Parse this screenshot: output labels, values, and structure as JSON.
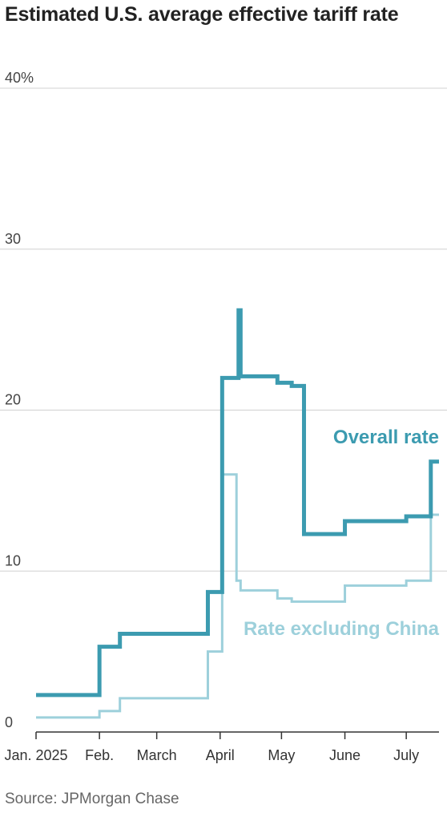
{
  "chart_data": {
    "type": "line",
    "title": "Estimated U.S. average effective tariff rate",
    "source": "Source: JPMorgan Chase",
    "xlim": [
      "2025-01-01",
      "2025-07-17"
    ],
    "ylim": [
      0,
      40
    ],
    "y_ticks": [
      0,
      10,
      20,
      30,
      40
    ],
    "y_tick_labels": [
      "0",
      "10",
      "20",
      "30",
      "40%"
    ],
    "x_ticks": [
      "2025-01-01",
      "2025-02-01",
      "2025-03-01",
      "2025-04-01",
      "2025-05-01",
      "2025-06-01",
      "2025-07-01"
    ],
    "x_tick_labels": [
      "Jan. 2025",
      "Feb.",
      "March",
      "April",
      "May",
      "June",
      "July"
    ],
    "grid": true,
    "line_style": "step",
    "series": [
      {
        "name": "Overall rate",
        "color": "#3c9bb0",
        "points": [
          [
            "2025-01-01",
            2.3
          ],
          [
            "2025-02-01",
            5.3
          ],
          [
            "2025-02-11",
            6.1
          ],
          [
            "2025-03-26",
            8.7
          ],
          [
            "2025-04-02",
            22.0
          ],
          [
            "2025-04-10",
            26.2
          ],
          [
            "2025-04-11",
            22.1
          ],
          [
            "2025-04-29",
            21.7
          ],
          [
            "2025-05-06",
            21.5
          ],
          [
            "2025-05-12",
            12.3
          ],
          [
            "2025-06-01",
            13.1
          ],
          [
            "2025-07-01",
            13.4
          ],
          [
            "2025-07-13",
            16.8
          ],
          [
            "2025-07-13",
            16.8
          ]
        ]
      },
      {
        "name": "Rate excluding China",
        "color": "#9dd0db",
        "points": [
          [
            "2025-01-01",
            0.9
          ],
          [
            "2025-02-01",
            1.3
          ],
          [
            "2025-02-11",
            2.1
          ],
          [
            "2025-03-26",
            5.0
          ],
          [
            "2025-04-02",
            16.0
          ],
          [
            "2025-04-09",
            9.4
          ],
          [
            "2025-04-11",
            8.8
          ],
          [
            "2025-04-29",
            8.3
          ],
          [
            "2025-05-06",
            8.1
          ],
          [
            "2025-06-01",
            9.1
          ],
          [
            "2025-07-01",
            9.4
          ],
          [
            "2025-07-13",
            13.5
          ],
          [
            "2025-07-13",
            13.5
          ]
        ]
      }
    ]
  }
}
